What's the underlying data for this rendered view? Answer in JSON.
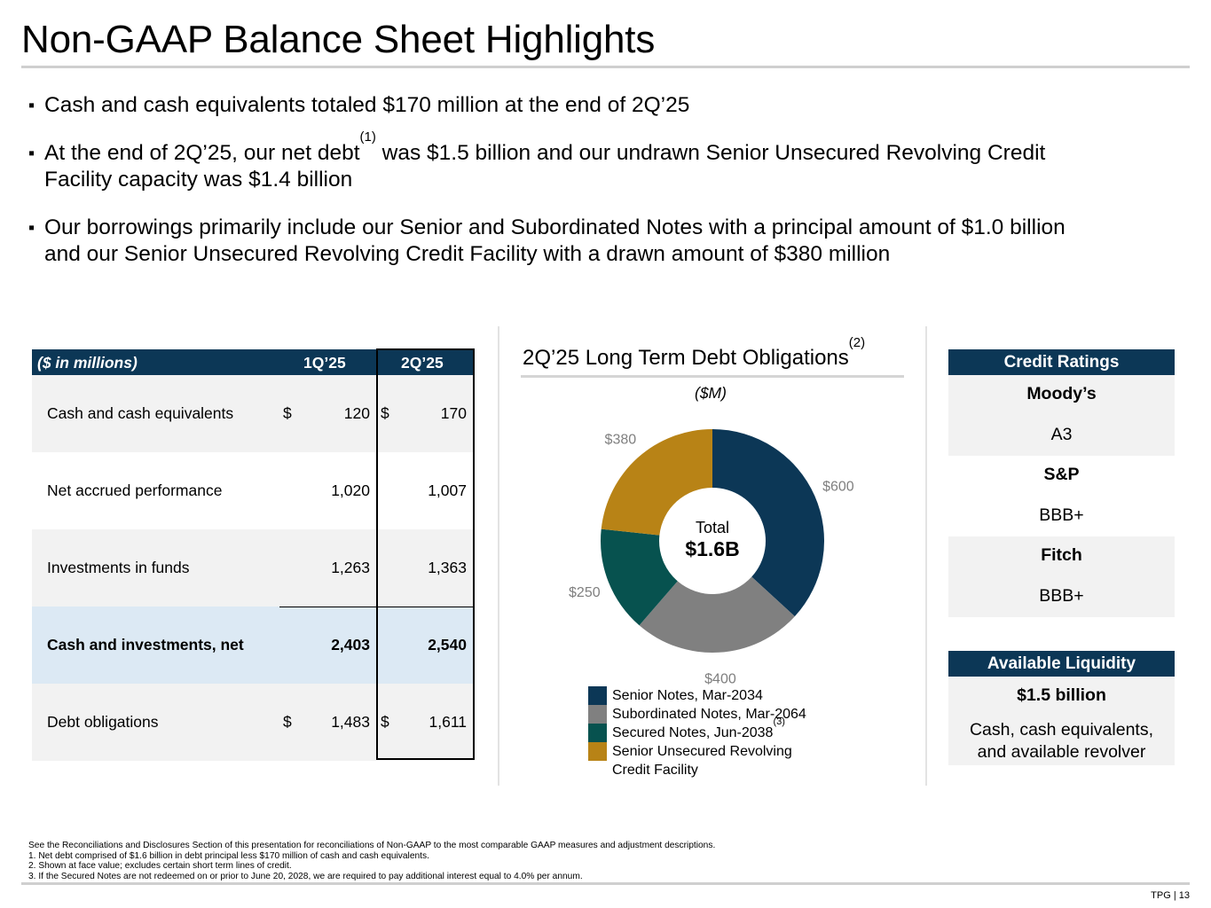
{
  "title": "Non-GAAP Balance Sheet Highlights",
  "bullets": {
    "b1": "Cash and cash equivalents totaled $170 million at the end of 2Q’25",
    "b2_pre": "At the end of 2Q’25, our net debt",
    "b2_sup": "(1)",
    "b2_post_line1": " was $1.5 billion and our undrawn Senior Unsecured Revolving Credit",
    "b2_line2": "Facility capacity was $1.4 billion",
    "b3_line1": "Our borrowings primarily include our Senior and Subordinated Notes with a principal amount of $1.0 billion",
    "b3_line2": "and our Senior Unsecured Revolving Credit Facility with a drawn amount of $380 million",
    "marker": "▪"
  },
  "table": {
    "header": [
      "($ in millions)",
      "1Q’25",
      "2Q’25"
    ],
    "rows": [
      {
        "label": "Cash and cash equivalents",
        "cur1": "$",
        "v1": "120",
        "cur2": "$",
        "v2": "170"
      },
      {
        "label": "Net accrued performance",
        "cur1": "",
        "v1": "1,020",
        "cur2": "",
        "v2": "1,007"
      },
      {
        "label": "Investments in funds",
        "cur1": "",
        "v1": "1,263",
        "cur2": "",
        "v2": "1,363"
      },
      {
        "label": "Cash and investments, net",
        "cur1": "",
        "v1": "2,403",
        "cur2": "",
        "v2": "2,540"
      },
      {
        "label": "Debt obligations",
        "cur1": "$",
        "v1": "1,483",
        "cur2": "$",
        "v2": "1,611"
      }
    ]
  },
  "chart": {
    "title": "2Q’25 Long Term Debt Obligations",
    "title_sup": "(2)",
    "unit": "($M)",
    "center_top": "Total",
    "center_value": "$1.6B"
  },
  "chart_data": {
    "type": "pie",
    "title": "2Q’25 Long Term Debt Obligations",
    "unit": "($M)",
    "slices": [
      {
        "name": "Senior Notes, Mar-2034",
        "value": 600,
        "label": "$600",
        "color": "#0c3756"
      },
      {
        "name": "Subordinated Notes, Mar-2064",
        "value": 400,
        "label": "$400",
        "color": "#808080"
      },
      {
        "name": "Secured Notes, Jun-2038",
        "value": 250,
        "label": "$250",
        "color": "#07524f"
      },
      {
        "name": "Senior Unsecured Revolving Credit Facility",
        "value": 380,
        "label": "$380",
        "color": "#b88316"
      }
    ],
    "total_label": "$1.6B",
    "donut": true
  },
  "legend": {
    "l1": "Senior Notes, Mar-2034",
    "l2": "Subordinated Notes, Mar-2064",
    "l3": "Secured Notes, Jun-2038",
    "l3_sup": "(3)",
    "l4a": "Senior Unsecured Revolving",
    "l4b": "Credit Facility"
  },
  "ratings": {
    "header": "Credit Ratings",
    "items": [
      {
        "agency": "Moody’s",
        "rating": "A3"
      },
      {
        "agency": "S&P",
        "rating": "BBB+"
      },
      {
        "agency": "Fitch",
        "rating": "BBB+"
      }
    ]
  },
  "liquidity": {
    "header": "Available Liquidity",
    "amount": "$1.5 billion",
    "desc_line1": "Cash, cash equivalents,",
    "desc_line2": "and available revolver"
  },
  "footnotes": [
    "See the Reconciliations and Disclosures Section of this presentation for reconciliations of Non-GAAP to the most comparable GAAP measures and adjustment descriptions.",
    "1. Net debt comprised of $1.6 billion in debt principal less $170 million of cash and cash equivalents.",
    "2. Shown at face value; excludes certain short term lines of credit.",
    "3. If the Secured Notes are not redeemed on or prior to June 20, 2028, we are required to pay additional interest equal to 4.0% per annum."
  ],
  "page_number": "TPG | 13"
}
